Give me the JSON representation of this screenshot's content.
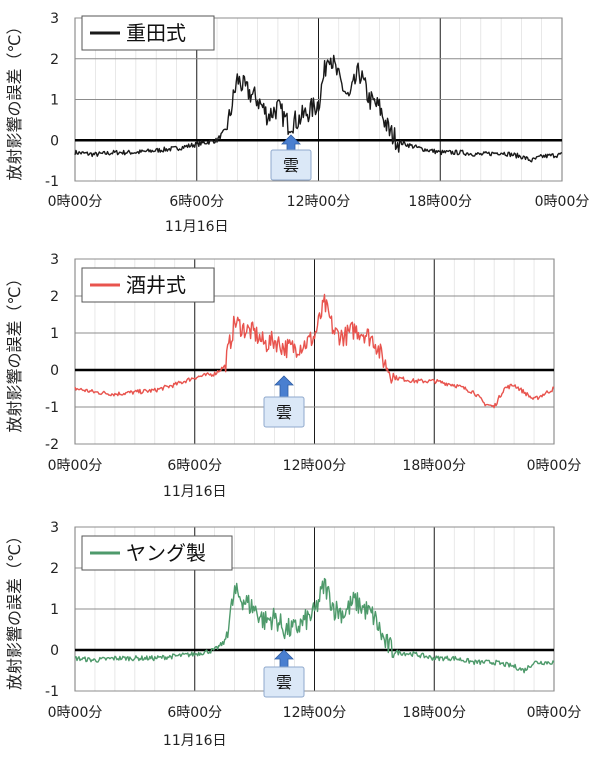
{
  "figure": {
    "x_tick_labels": [
      "0時00分",
      "6時00分",
      "12時00分",
      "18時00分",
      "0時00分"
    ],
    "date_label": "11月16日",
    "cloud_label": "雲"
  },
  "chart_data": [
    {
      "type": "line",
      "legend": "重田式",
      "ylabel": "放射影響の誤差（℃）",
      "xlabel": "",
      "x_unit": "hour",
      "xlim": [
        0,
        24
      ],
      "ylim": [
        -1,
        3
      ],
      "y_ticks": [
        "-1",
        "0",
        "1",
        "2",
        "3"
      ],
      "grid": true,
      "legend_position": "top-left",
      "series": [
        {
          "color": "#1a1a1a",
          "x": [
            0,
            1,
            2,
            3,
            4,
            5,
            6,
            7,
            7.5,
            8,
            8.5,
            9,
            9.5,
            10,
            10.5,
            11,
            11.5,
            12,
            12.5,
            13,
            13.5,
            14,
            14.5,
            15,
            15.5,
            16,
            17,
            18,
            19,
            20,
            21,
            22,
            22.5,
            23,
            24
          ],
          "y": [
            -0.3,
            -0.35,
            -0.3,
            -0.3,
            -0.25,
            -0.2,
            -0.1,
            0.0,
            0.3,
            1.5,
            1.2,
            1.0,
            0.6,
            0.8,
            0.4,
            0.5,
            0.7,
            0.9,
            2.2,
            1.5,
            1.0,
            1.7,
            1.0,
            0.8,
            0.2,
            -0.05,
            -0.2,
            -0.3,
            -0.3,
            -0.35,
            -0.3,
            -0.4,
            -0.5,
            -0.4,
            -0.35
          ]
        }
      ]
    },
    {
      "type": "line",
      "legend": "酒井式",
      "ylabel": "放射影響の誤差（℃）",
      "xlabel": "",
      "x_unit": "hour",
      "xlim": [
        0,
        24
      ],
      "ylim": [
        -2,
        3
      ],
      "y_ticks": [
        "-2",
        "-1",
        "0",
        "1",
        "2",
        "3"
      ],
      "grid": true,
      "legend_position": "top-left",
      "series": [
        {
          "color": "#e8544e",
          "x": [
            0,
            1,
            2,
            3,
            4,
            5,
            6,
            7,
            7.5,
            8,
            8.5,
            9,
            9.5,
            10,
            10.5,
            11,
            11.5,
            12,
            12.5,
            13,
            13.5,
            14,
            14.5,
            15,
            15.5,
            16,
            17,
            18,
            19,
            20,
            20.5,
            21,
            21.5,
            22,
            23,
            24
          ],
          "y": [
            -0.5,
            -0.6,
            -0.65,
            -0.6,
            -0.55,
            -0.4,
            -0.2,
            -0.1,
            0.1,
            1.3,
            1.1,
            1.0,
            0.7,
            0.8,
            0.6,
            0.6,
            0.7,
            0.9,
            1.8,
            1.0,
            0.9,
            1.1,
            1.0,
            0.8,
            0.2,
            -0.2,
            -0.3,
            -0.3,
            -0.4,
            -0.6,
            -0.9,
            -1.0,
            -0.5,
            -0.4,
            -0.8,
            -0.5
          ]
        }
      ]
    },
    {
      "type": "line",
      "legend": "ヤング製",
      "ylabel": "放射影響の誤差（℃）",
      "xlabel": "",
      "x_unit": "hour",
      "xlim": [
        0,
        24
      ],
      "ylim": [
        -1,
        3
      ],
      "y_ticks": [
        "-1",
        "0",
        "1",
        "2",
        "3"
      ],
      "grid": true,
      "legend_position": "top-left",
      "series": [
        {
          "color": "#4e9a6b",
          "x": [
            0,
            1,
            2,
            3,
            4,
            5,
            6,
            7,
            7.5,
            8,
            8.5,
            9,
            9.5,
            10,
            10.5,
            11,
            11.5,
            12,
            12.5,
            13,
            13.5,
            14,
            14.5,
            15,
            15.5,
            16,
            17,
            18,
            19,
            20,
            21,
            22,
            22.5,
            23,
            24
          ],
          "y": [
            -0.2,
            -0.25,
            -0.2,
            -0.2,
            -0.2,
            -0.15,
            -0.1,
            0.0,
            0.2,
            1.4,
            1.2,
            1.0,
            0.7,
            0.8,
            0.5,
            0.5,
            0.7,
            0.9,
            1.6,
            1.0,
            0.9,
            1.2,
            1.0,
            0.8,
            0.2,
            -0.05,
            -0.1,
            -0.2,
            -0.2,
            -0.3,
            -0.3,
            -0.4,
            -0.5,
            -0.3,
            -0.3
          ]
        }
      ]
    }
  ]
}
